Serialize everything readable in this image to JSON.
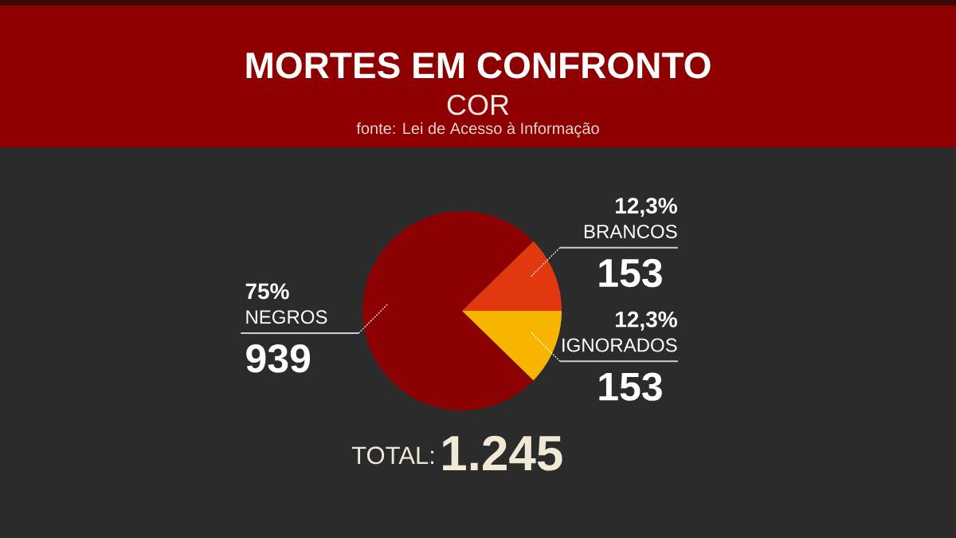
{
  "chart_data": {
    "type": "pie",
    "title": "MORTES EM CONFRONTO",
    "subtitle": "COR",
    "categories": [
      "NEGROS",
      "BRANCOS",
      "IGNORADOS"
    ],
    "values": [
      939,
      153,
      153
    ],
    "colors": [
      "#8b0000",
      "#e2380f",
      "#f7b500"
    ],
    "data_labels": true,
    "annotations": [
      "fonte: Lei de Acesso à Informação",
      "TOTAL:",
      "1.245",
      {
        "text": "75%",
        "x": "NEGROS"
      },
      {
        "text": "12,3%",
        "x": "BRANCOS"
      },
      {
        "text": "12,3%",
        "x": "IGNORADOS"
      }
    ]
  }
}
